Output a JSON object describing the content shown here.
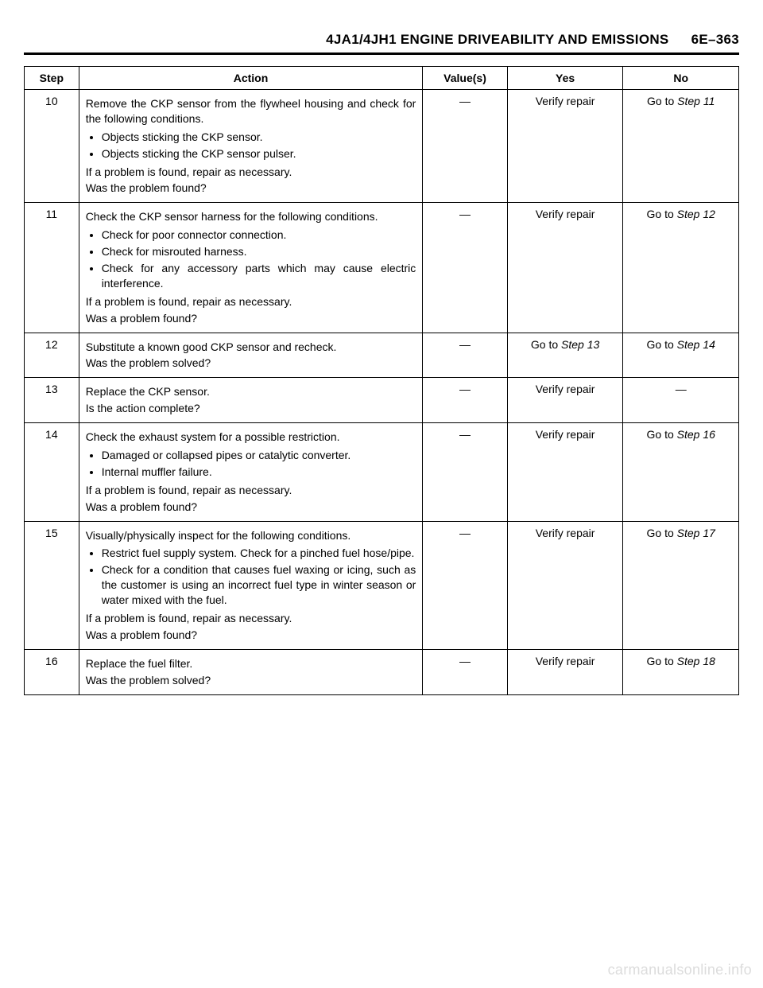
{
  "header": {
    "title": "4JA1/4JH1 ENGINE DRIVEABILITY AND EMISSIONS",
    "page_ref": "6E–363"
  },
  "table": {
    "columns": {
      "step": "Step",
      "action": "Action",
      "values": "Value(s)",
      "yes": "Yes",
      "no": "No"
    },
    "rows": [
      {
        "step": "10",
        "action": {
          "intro": "Remove the CKP sensor from the flywheel housing and check for the following conditions.",
          "bullets": [
            "Objects sticking the CKP sensor.",
            "Objects sticking the CKP sensor pulser."
          ],
          "note": "If a problem is found, repair as necessary.",
          "question": "Was the problem found?"
        },
        "values": "—",
        "yes": "Verify repair",
        "no_prefix": "Go to ",
        "no_step": "Step 11"
      },
      {
        "step": "11",
        "action": {
          "intro": "Check the CKP sensor harness for the following conditions.",
          "bullets": [
            "Check for poor connector connection.",
            "Check for misrouted harness.",
            "Check for any accessory parts which may cause electric interference."
          ],
          "note": "If a problem is found, repair as necessary.",
          "question": "Was a problem found?"
        },
        "values": "—",
        "yes": "Verify repair",
        "no_prefix": "Go to ",
        "no_step": "Step 12"
      },
      {
        "step": "12",
        "action": {
          "intro": "Substitute a known good CKP sensor and recheck.",
          "bullets": [],
          "note": "",
          "question": "Was the problem solved?"
        },
        "values": "—",
        "yes_prefix": "Go to ",
        "yes_step": "Step 13",
        "no_prefix": "Go to ",
        "no_step": "Step 14"
      },
      {
        "step": "13",
        "action": {
          "intro": "Replace the CKP sensor.",
          "bullets": [],
          "note": "",
          "question": "Is the action complete?"
        },
        "values": "—",
        "yes": "Verify repair",
        "no": "—"
      },
      {
        "step": "14",
        "action": {
          "intro": "Check the exhaust system for a possible restriction.",
          "bullets": [
            "Damaged or collapsed pipes or catalytic converter.",
            "Internal muffler failure."
          ],
          "note": "If a problem is found, repair as necessary.",
          "question": "Was a problem found?"
        },
        "values": "—",
        "yes": "Verify repair",
        "no_prefix": "Go to ",
        "no_step": "Step 16"
      },
      {
        "step": "15",
        "action": {
          "intro": "Visually/physically inspect for the following conditions.",
          "bullets": [
            "Restrict fuel supply system. Check for a pinched fuel hose/pipe.",
            "Check for a condition that causes fuel waxing or icing, such as the customer is using an incorrect fuel type in winter season or water mixed with the fuel."
          ],
          "note": "If a problem is found, repair as necessary.",
          "question": "Was a problem found?"
        },
        "values": "—",
        "yes": "Verify repair",
        "no_prefix": "Go to ",
        "no_step": "Step 17"
      },
      {
        "step": "16",
        "action": {
          "intro": "Replace the fuel filter.",
          "bullets": [],
          "note": "",
          "question": "Was the problem solved?"
        },
        "values": "—",
        "yes": "Verify repair",
        "no_prefix": "Go to ",
        "no_step": "Step 18"
      }
    ]
  },
  "watermark": "carmanualsonline.info"
}
